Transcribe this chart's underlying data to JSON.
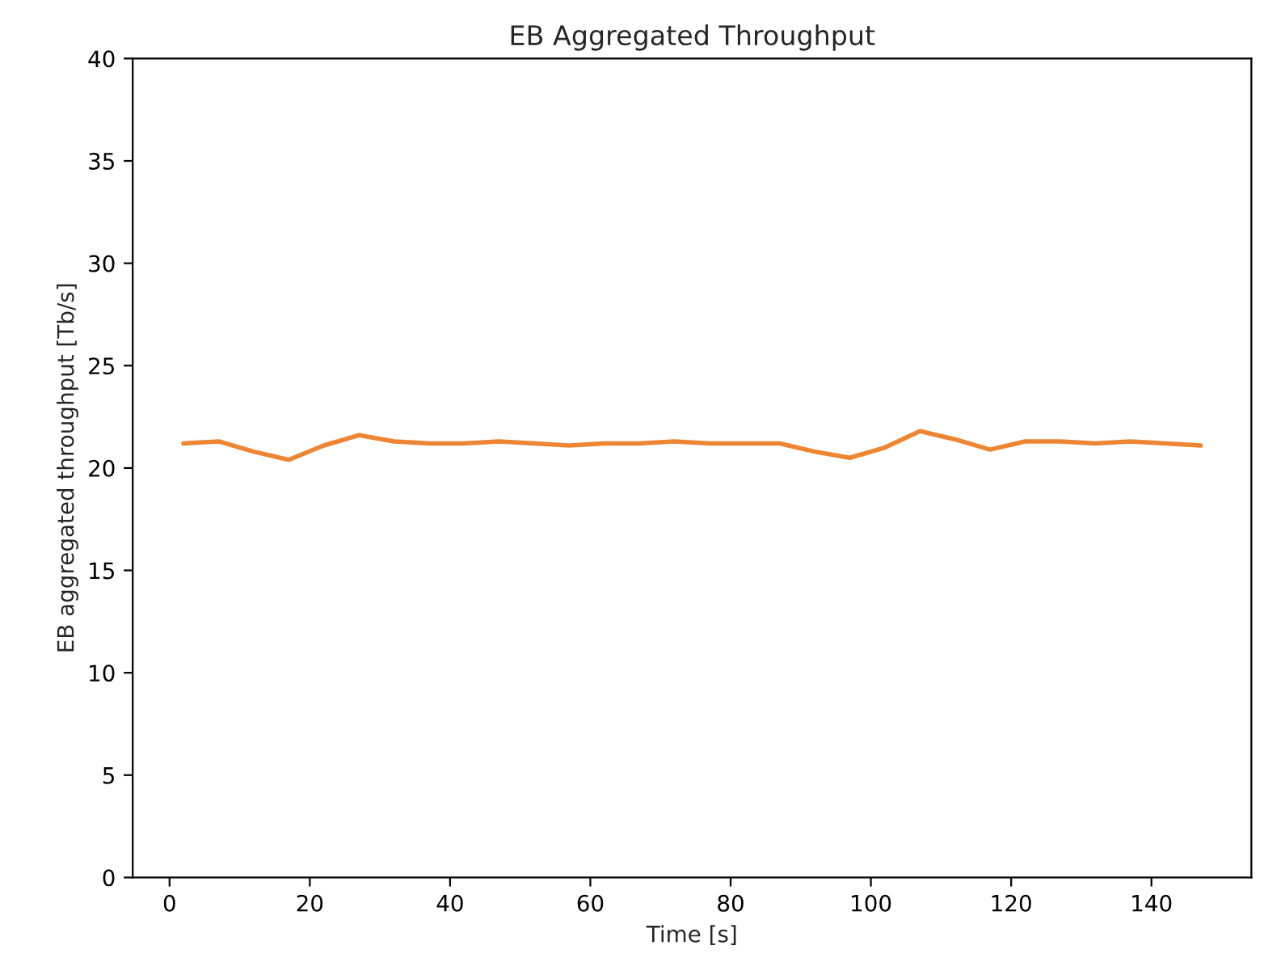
{
  "chart_data": {
    "type": "line",
    "title": "EB Aggregated Throughput",
    "xlabel": "Time [s]",
    "ylabel": "EB aggregated throughput [Tb/s]",
    "x": [
      2,
      7,
      12,
      17,
      22,
      27,
      32,
      37,
      42,
      47,
      52,
      57,
      62,
      67,
      72,
      77,
      82,
      87,
      92,
      97,
      102,
      107,
      112,
      117,
      122,
      127,
      132,
      137,
      142,
      147
    ],
    "series": [
      {
        "color": "#ee8532",
        "values": [
          21.2,
          21.3,
          20.8,
          20.4,
          21.1,
          21.6,
          21.3,
          21.2,
          21.2,
          21.3,
          21.2,
          21.1,
          21.2,
          21.2,
          21.3,
          21.2,
          21.2,
          21.2,
          20.8,
          20.5,
          21.0,
          21.8,
          21.4,
          20.9,
          21.3,
          21.3,
          21.2,
          21.3,
          21.2,
          21.1
        ]
      }
    ],
    "xlim": [
      -5.25,
      154.25
    ],
    "xticks": [
      0,
      20,
      40,
      60,
      80,
      100,
      120,
      140
    ],
    "ylim": [
      0,
      40
    ],
    "yticks": [
      0,
      5,
      10,
      15,
      20,
      25,
      30,
      35,
      40
    ],
    "grid": false,
    "marker": "none",
    "line_style": "solid"
  }
}
